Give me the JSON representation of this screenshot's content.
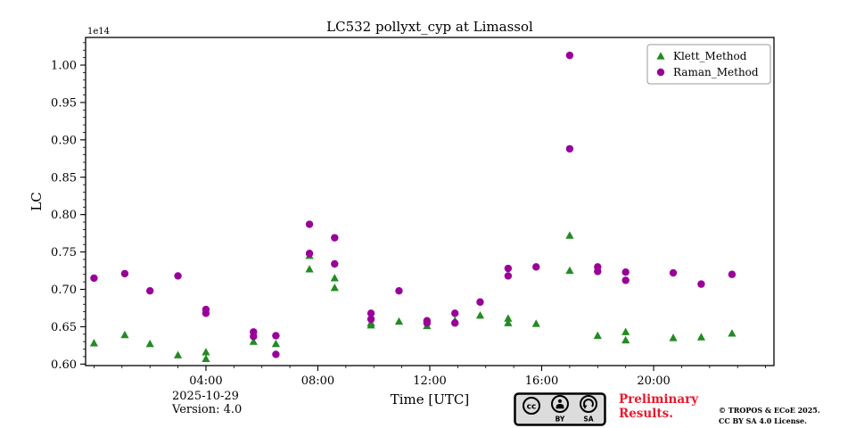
{
  "chart_data": {
    "type": "scatter",
    "title": "LC532 pollyxt_cyp at Limassol",
    "xlabel": "Time [UTC]",
    "ylabel": "LC",
    "y_offset_label": "1e14",
    "xlim_hours": [
      -0.3,
      24.3
    ],
    "ylim": [
      0.598,
      1.037
    ],
    "grid": false,
    "legend_position": "upper right",
    "x_major_ticks": [
      {
        "hour": 4,
        "label": "04:00"
      },
      {
        "hour": 8,
        "label": "08:00"
      },
      {
        "hour": 12,
        "label": "12:00"
      },
      {
        "hour": 16,
        "label": "16:00"
      },
      {
        "hour": 20,
        "label": "20:00"
      }
    ],
    "y_major_ticks": [
      0.6,
      0.65,
      0.7,
      0.75,
      0.8,
      0.85,
      0.9,
      0.95,
      1.0
    ],
    "series": [
      {
        "name": "Klett_Method",
        "marker": "triangle",
        "color": "#228B22",
        "points": [
          [
            0.0,
            0.628
          ],
          [
            1.1,
            0.639
          ],
          [
            2.0,
            0.627
          ],
          [
            3.0,
            0.612
          ],
          [
            4.0,
            0.616
          ],
          [
            4.0,
            0.607
          ],
          [
            5.7,
            0.63
          ],
          [
            6.5,
            0.627
          ],
          [
            7.7,
            0.745
          ],
          [
            7.7,
            0.727
          ],
          [
            8.6,
            0.715
          ],
          [
            8.6,
            0.702
          ],
          [
            9.9,
            0.655
          ],
          [
            9.9,
            0.652
          ],
          [
            10.9,
            0.657
          ],
          [
            11.9,
            0.651
          ],
          [
            12.9,
            0.658
          ],
          [
            13.8,
            0.665
          ],
          [
            14.8,
            0.661
          ],
          [
            14.8,
            0.655
          ],
          [
            15.8,
            0.654
          ],
          [
            17.0,
            0.772
          ],
          [
            17.0,
            0.725
          ],
          [
            18.0,
            0.638
          ],
          [
            19.0,
            0.643
          ],
          [
            19.0,
            0.632
          ],
          [
            20.7,
            0.635
          ],
          [
            21.7,
            0.636
          ],
          [
            22.8,
            0.641
          ]
        ]
      },
      {
        "name": "Raman_Method",
        "marker": "circle",
        "color": "#990099",
        "points": [
          [
            0.0,
            0.715
          ],
          [
            1.1,
            0.721
          ],
          [
            2.0,
            0.698
          ],
          [
            3.0,
            0.718
          ],
          [
            4.0,
            0.673
          ],
          [
            4.0,
            0.668
          ],
          [
            5.7,
            0.643
          ],
          [
            5.7,
            0.637
          ],
          [
            6.5,
            0.638
          ],
          [
            6.5,
            0.613
          ],
          [
            7.7,
            0.787
          ],
          [
            7.7,
            0.748
          ],
          [
            8.6,
            0.769
          ],
          [
            8.6,
            0.734
          ],
          [
            9.9,
            0.668
          ],
          [
            9.9,
            0.66
          ],
          [
            10.9,
            0.698
          ],
          [
            11.9,
            0.658
          ],
          [
            11.9,
            0.655
          ],
          [
            12.9,
            0.668
          ],
          [
            12.9,
            0.655
          ],
          [
            13.8,
            0.683
          ],
          [
            14.8,
            0.728
          ],
          [
            14.8,
            0.718
          ],
          [
            15.8,
            0.73
          ],
          [
            17.0,
            1.013
          ],
          [
            17.0,
            0.888
          ],
          [
            18.0,
            0.73
          ],
          [
            18.0,
            0.724
          ],
          [
            19.0,
            0.723
          ],
          [
            19.0,
            0.712
          ],
          [
            20.7,
            0.722
          ],
          [
            21.7,
            0.707
          ],
          [
            22.8,
            0.72
          ]
        ]
      }
    ]
  },
  "footer": {
    "date": "2025-10-29",
    "version": "Version: 4.0",
    "preliminary_line1": "Preliminary",
    "preliminary_line2": "Results.",
    "preliminary_color": "#e8192c",
    "copyright_line1": "© TROPOS & ECoE 2025.",
    "copyright_line2": "CC BY SA 4.0 License.",
    "cc_badge": {
      "logo": "cc",
      "label_by": "BY",
      "label_sa": "SA"
    }
  }
}
